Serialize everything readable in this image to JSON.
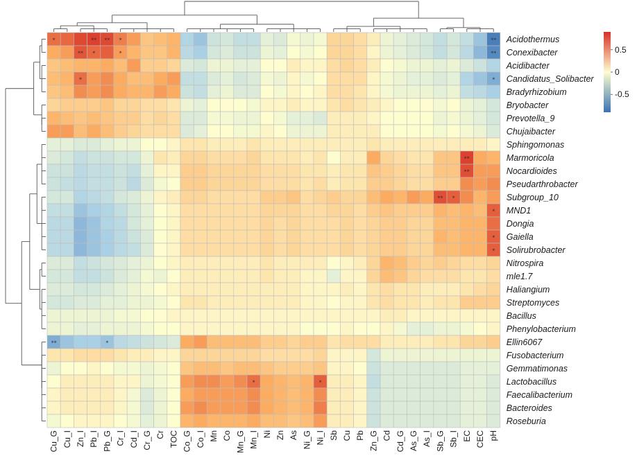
{
  "chart_data": {
    "type": "heatmap",
    "title": "",
    "columns": [
      "Cu_G",
      "Cu_I",
      "Zn_I",
      "Pb_I",
      "Pb_G",
      "Cr_I",
      "Cd_I",
      "Cr_G",
      "Cr",
      "TOC",
      "Co_G",
      "Co_I",
      "Mn",
      "Co",
      "Mn_G",
      "Mn_I",
      "Ni",
      "Zn",
      "As",
      "Ni_G",
      "Ni_I",
      "Sb",
      "Cu",
      "Pb",
      "Zn_G",
      "Cd",
      "Cd_G",
      "As_G",
      "As_I",
      "Sb_G",
      "Sb_I",
      "EC",
      "CEC",
      "pH"
    ],
    "rows": [
      "Acidothermus",
      "Conexibacter",
      "Acidibacter",
      "Candidatus_Solibacter",
      "Bradyrhizobium",
      "Bryobacter",
      "Prevotella_9",
      "Chujaibacter",
      "Sphingomonas",
      "Marmoricola",
      "Nocardioides",
      "Pseudarthrobacter",
      "Subgroup_10",
      "MND1",
      "Dongia",
      "Gaiella",
      "Solirubrobacter",
      "Nitrospira",
      "mle1.7",
      "Haliangium",
      "Streptomyces",
      "Bacillus",
      "Phenylobacterium",
      "Ellin6067",
      "Fusobacterium",
      "Gemmatimonas",
      "Lactobacillus",
      "Faecalibacterium",
      "Bacteroides",
      "Roseburia"
    ],
    "values": [
      [
        0.7,
        0.72,
        0.82,
        0.85,
        0.82,
        0.65,
        0.55,
        0.35,
        0.4,
        0.45,
        -0.45,
        -0.55,
        -0.3,
        -0.25,
        -0.35,
        -0.35,
        -0.15,
        -0.2,
        -0.05,
        -0.1,
        -0.05,
        0.25,
        0.25,
        0.2,
        0.1,
        -0.1,
        -0.15,
        -0.2,
        -0.25,
        -0.35,
        -0.25,
        -0.35,
        -0.55,
        -0.85
      ],
      [
        0.5,
        0.55,
        0.78,
        0.72,
        0.75,
        0.55,
        0.45,
        0.35,
        0.35,
        0.45,
        -0.4,
        -0.5,
        -0.25,
        -0.2,
        -0.3,
        -0.3,
        -0.1,
        -0.15,
        0.0,
        -0.05,
        0.0,
        0.25,
        0.25,
        0.2,
        0.05,
        -0.1,
        -0.15,
        -0.2,
        -0.25,
        -0.35,
        -0.25,
        -0.4,
        -0.6,
        -0.8
      ],
      [
        0.35,
        0.4,
        0.45,
        0.45,
        0.5,
        0.4,
        0.55,
        0.3,
        0.3,
        0.25,
        -0.2,
        -0.25,
        -0.1,
        -0.1,
        -0.15,
        -0.15,
        0.0,
        0.0,
        0.1,
        0.05,
        0.05,
        0.2,
        0.25,
        0.2,
        0.1,
        0.0,
        -0.05,
        -0.1,
        -0.1,
        -0.15,
        -0.1,
        -0.2,
        -0.3,
        -0.45
      ],
      [
        0.4,
        0.45,
        0.7,
        0.55,
        0.6,
        0.5,
        0.4,
        0.4,
        0.5,
        0.55,
        -0.35,
        -0.35,
        -0.2,
        -0.15,
        -0.25,
        -0.2,
        -0.05,
        -0.1,
        0.05,
        -0.05,
        0.0,
        0.2,
        0.2,
        0.2,
        0.05,
        -0.05,
        -0.1,
        -0.15,
        -0.15,
        -0.2,
        -0.15,
        -0.45,
        -0.55,
        -0.65
      ],
      [
        0.35,
        0.4,
        0.6,
        0.55,
        0.6,
        0.5,
        0.45,
        0.45,
        0.55,
        0.5,
        -0.3,
        -0.35,
        -0.15,
        -0.1,
        -0.2,
        -0.2,
        0.0,
        -0.05,
        0.05,
        0.0,
        0.05,
        0.2,
        0.2,
        0.15,
        0.05,
        -0.05,
        -0.1,
        -0.1,
        -0.1,
        -0.15,
        -0.1,
        -0.35,
        -0.4,
        -0.5
      ],
      [
        0.25,
        0.3,
        0.3,
        0.3,
        0.35,
        0.25,
        0.25,
        0.2,
        0.2,
        0.15,
        -0.1,
        -0.15,
        0.0,
        0.0,
        0.0,
        -0.05,
        0.05,
        0.05,
        0.1,
        0.05,
        0.05,
        0.15,
        0.2,
        0.15,
        0.1,
        0.05,
        0.0,
        0.0,
        0.0,
        -0.05,
        0.0,
        -0.1,
        -0.15,
        -0.25
      ],
      [
        0.45,
        0.4,
        0.35,
        0.4,
        0.35,
        0.3,
        0.3,
        0.2,
        0.25,
        0.2,
        -0.2,
        -0.2,
        -0.05,
        -0.05,
        -0.1,
        -0.1,
        0.0,
        -0.05,
        -0.15,
        -0.15,
        -0.2,
        0.1,
        0.1,
        0.1,
        0.05,
        0.0,
        0.0,
        0.0,
        0.0,
        -0.1,
        -0.05,
        -0.1,
        -0.15,
        -0.25
      ],
      [
        0.55,
        0.55,
        0.4,
        0.5,
        0.4,
        0.3,
        0.25,
        0.2,
        0.2,
        0.2,
        -0.2,
        -0.15,
        0.0,
        0.0,
        -0.05,
        -0.05,
        0.05,
        0.0,
        -0.1,
        -0.1,
        -0.1,
        0.1,
        0.1,
        0.1,
        0.1,
        0.0,
        0.0,
        0.0,
        0.0,
        -0.05,
        0.0,
        -0.05,
        -0.1,
        -0.2
      ],
      [
        -0.15,
        -0.15,
        -0.2,
        -0.2,
        -0.15,
        -0.1,
        -0.1,
        0.0,
        0.0,
        0.05,
        0.15,
        0.15,
        0.1,
        0.1,
        0.1,
        0.15,
        0.1,
        0.1,
        0.1,
        0.1,
        0.1,
        0.1,
        0.1,
        0.1,
        0.15,
        0.1,
        0.1,
        0.1,
        0.1,
        0.1,
        0.1,
        0.1,
        0.1,
        0.05
      ],
      [
        -0.2,
        -0.25,
        -0.35,
        -0.3,
        -0.3,
        -0.25,
        -0.25,
        -0.1,
        0.15,
        0.1,
        0.25,
        0.25,
        0.2,
        0.2,
        0.2,
        0.25,
        0.15,
        0.15,
        0.15,
        0.1,
        0.15,
        0.0,
        0.1,
        0.1,
        0.5,
        0.25,
        0.2,
        0.15,
        0.15,
        0.35,
        0.35,
        0.85,
        0.5,
        0.45
      ],
      [
        -0.3,
        -0.3,
        -0.4,
        -0.35,
        -0.35,
        -0.3,
        -0.35,
        -0.15,
        0.05,
        0.05,
        0.3,
        0.3,
        0.25,
        0.25,
        0.25,
        0.25,
        0.2,
        0.2,
        0.2,
        0.15,
        0.15,
        0.1,
        0.15,
        0.15,
        0.35,
        0.3,
        0.25,
        0.2,
        0.2,
        0.35,
        0.35,
        0.8,
        0.55,
        0.55
      ],
      [
        -0.3,
        -0.35,
        -0.4,
        -0.35,
        -0.35,
        -0.3,
        -0.4,
        -0.2,
        -0.05,
        0.0,
        0.3,
        0.3,
        0.25,
        0.25,
        0.25,
        0.25,
        0.2,
        0.2,
        0.2,
        0.15,
        0.2,
        0.1,
        0.15,
        0.15,
        0.3,
        0.3,
        0.25,
        0.2,
        0.2,
        0.3,
        0.3,
        0.6,
        0.55,
        0.6
      ],
      [
        -0.25,
        -0.25,
        -0.45,
        -0.4,
        -0.35,
        -0.25,
        -0.2,
        -0.1,
        0.05,
        0.1,
        0.25,
        0.25,
        0.2,
        0.2,
        0.2,
        0.2,
        0.3,
        0.3,
        0.35,
        0.2,
        0.25,
        0.3,
        0.25,
        0.25,
        0.4,
        0.5,
        0.45,
        0.55,
        0.5,
        0.8,
        0.75,
        0.6,
        0.45,
        0.55
      ],
      [
        -0.35,
        -0.35,
        -0.55,
        -0.5,
        -0.45,
        -0.35,
        -0.25,
        -0.15,
        0.0,
        0.05,
        0.2,
        0.2,
        0.2,
        0.2,
        0.2,
        0.2,
        0.25,
        0.25,
        0.25,
        0.2,
        0.2,
        0.25,
        0.25,
        0.2,
        0.3,
        0.35,
        0.3,
        0.3,
        0.3,
        0.45,
        0.4,
        0.45,
        0.4,
        0.75
      ],
      [
        -0.4,
        -0.4,
        -0.6,
        -0.55,
        -0.45,
        -0.4,
        -0.25,
        -0.15,
        0.0,
        0.05,
        0.2,
        0.2,
        0.2,
        0.2,
        0.2,
        0.2,
        0.25,
        0.2,
        0.25,
        0.2,
        0.2,
        0.2,
        0.25,
        0.2,
        0.25,
        0.3,
        0.3,
        0.25,
        0.25,
        0.4,
        0.4,
        0.45,
        0.45,
        0.7
      ],
      [
        -0.4,
        -0.4,
        -0.6,
        -0.55,
        -0.5,
        -0.4,
        -0.3,
        -0.2,
        0.0,
        0.05,
        0.2,
        0.2,
        0.2,
        0.2,
        0.2,
        0.2,
        0.25,
        0.2,
        0.25,
        0.2,
        0.2,
        0.2,
        0.25,
        0.2,
        0.25,
        0.3,
        0.3,
        0.25,
        0.25,
        0.45,
        0.4,
        0.45,
        0.45,
        0.75
      ],
      [
        -0.4,
        -0.4,
        -0.6,
        -0.55,
        -0.5,
        -0.4,
        -0.35,
        -0.2,
        0.0,
        0.05,
        0.2,
        0.2,
        0.2,
        0.2,
        0.2,
        0.2,
        0.25,
        0.2,
        0.25,
        0.2,
        0.2,
        0.2,
        0.25,
        0.2,
        0.25,
        0.3,
        0.3,
        0.25,
        0.25,
        0.4,
        0.4,
        0.45,
        0.45,
        0.75
      ],
      [
        -0.2,
        -0.2,
        -0.35,
        -0.3,
        -0.25,
        -0.2,
        -0.15,
        -0.1,
        0.0,
        0.05,
        0.1,
        0.1,
        0.1,
        0.1,
        0.1,
        0.1,
        0.15,
        0.1,
        0.1,
        0.1,
        0.1,
        0.0,
        0.05,
        0.1,
        0.25,
        0.45,
        0.4,
        0.3,
        0.25,
        0.3,
        0.25,
        0.2,
        0.2,
        0.25
      ],
      [
        -0.25,
        -0.25,
        -0.35,
        -0.35,
        -0.3,
        -0.2,
        -0.15,
        -0.05,
        -0.1,
        0.0,
        0.1,
        0.1,
        0.1,
        0.1,
        0.1,
        0.1,
        0.15,
        0.1,
        0.1,
        0.05,
        0.05,
        -0.15,
        0.05,
        0.05,
        0.25,
        0.4,
        0.35,
        0.25,
        0.2,
        0.2,
        0.2,
        0.15,
        0.15,
        0.2
      ],
      [
        -0.2,
        -0.2,
        -0.25,
        -0.25,
        -0.2,
        -0.15,
        -0.1,
        -0.05,
        0.0,
        0.05,
        0.1,
        0.1,
        0.1,
        0.1,
        0.1,
        0.1,
        0.1,
        0.1,
        0.1,
        0.05,
        0.05,
        0.05,
        0.1,
        0.05,
        0.15,
        0.2,
        0.15,
        0.15,
        0.1,
        0.1,
        0.1,
        0.15,
        0.2,
        0.25
      ],
      [
        -0.25,
        -0.25,
        -0.2,
        -0.2,
        -0.15,
        -0.15,
        -0.1,
        -0.1,
        -0.05,
        0.0,
        0.15,
        0.15,
        0.1,
        0.1,
        0.1,
        0.1,
        0.1,
        0.1,
        0.1,
        0.05,
        0.05,
        0.0,
        0.05,
        0.05,
        0.15,
        0.2,
        0.15,
        0.15,
        0.1,
        0.15,
        0.15,
        0.3,
        0.3,
        0.3
      ],
      [
        -0.1,
        -0.1,
        -0.1,
        -0.1,
        -0.1,
        -0.05,
        -0.05,
        0.0,
        0.0,
        0.05,
        0.05,
        0.05,
        0.05,
        0.05,
        0.05,
        0.05,
        0.05,
        0.05,
        0.05,
        0.05,
        0.05,
        0.05,
        0.05,
        0.05,
        0.05,
        0.1,
        0.1,
        0.05,
        0.05,
        0.05,
        0.05,
        0.05,
        0.05,
        0.05
      ],
      [
        -0.1,
        -0.1,
        -0.15,
        -0.15,
        -0.1,
        -0.1,
        -0.1,
        -0.05,
        0.0,
        0.0,
        0.05,
        0.05,
        0.05,
        0.05,
        0.05,
        0.05,
        0.05,
        0.05,
        0.05,
        0.0,
        0.0,
        0.0,
        0.05,
        0.0,
        0.0,
        0.05,
        -0.05,
        -0.15,
        -0.15,
        -0.1,
        -0.1,
        -0.05,
        0.0,
        0.05
      ],
      [
        -0.65,
        -0.55,
        -0.5,
        -0.5,
        -0.55,
        -0.4,
        -0.35,
        -0.3,
        -0.25,
        -0.2,
        0.5,
        0.55,
        0.4,
        0.4,
        0.4,
        0.4,
        0.3,
        0.3,
        0.25,
        0.3,
        0.3,
        0.15,
        0.2,
        0.2,
        0.2,
        0.1,
        0.1,
        0.1,
        0.1,
        0.15,
        0.15,
        0.25,
        0.25,
        0.3
      ],
      [
        0.15,
        0.15,
        0.2,
        0.2,
        0.2,
        0.15,
        0.1,
        0.1,
        0.05,
        0.05,
        0.25,
        0.25,
        0.25,
        0.25,
        0.25,
        0.25,
        0.2,
        0.2,
        0.2,
        0.2,
        0.25,
        0.05,
        0.05,
        0.05,
        -0.25,
        -0.1,
        -0.1,
        -0.1,
        -0.1,
        -0.1,
        -0.1,
        -0.1,
        -0.1,
        -0.1
      ],
      [
        -0.1,
        0.0,
        0.0,
        0.05,
        0.0,
        -0.05,
        -0.05,
        -0.1,
        -0.05,
        0.0,
        0.35,
        0.4,
        0.4,
        0.35,
        0.4,
        0.4,
        0.35,
        0.3,
        0.3,
        0.3,
        0.35,
        0.05,
        0.05,
        0.0,
        -0.3,
        -0.2,
        -0.2,
        -0.2,
        -0.2,
        -0.2,
        -0.2,
        -0.15,
        -0.15,
        -0.15
      ],
      [
        0.0,
        0.1,
        0.1,
        0.1,
        0.1,
        0.05,
        0.05,
        -0.1,
        -0.05,
        0.0,
        0.55,
        0.6,
        0.6,
        0.55,
        0.6,
        0.7,
        0.5,
        0.45,
        0.4,
        0.45,
        0.75,
        0.1,
        0.1,
        0.05,
        -0.35,
        -0.2,
        -0.2,
        -0.2,
        -0.2,
        -0.2,
        -0.2,
        -0.15,
        -0.15,
        -0.2
      ],
      [
        0.05,
        0.1,
        0.1,
        0.1,
        0.1,
        0.05,
        -0.05,
        -0.2,
        -0.1,
        0.0,
        0.5,
        0.55,
        0.55,
        0.55,
        0.55,
        0.6,
        0.5,
        0.45,
        0.4,
        0.45,
        0.6,
        0.1,
        0.1,
        0.05,
        -0.3,
        -0.2,
        -0.2,
        -0.2,
        -0.2,
        -0.2,
        -0.2,
        -0.15,
        -0.15,
        -0.2
      ],
      [
        0.05,
        0.1,
        0.1,
        0.1,
        0.1,
        0.05,
        -0.05,
        -0.2,
        -0.1,
        0.0,
        0.55,
        0.6,
        0.55,
        0.55,
        0.55,
        0.6,
        0.5,
        0.45,
        0.4,
        0.45,
        0.65,
        0.1,
        0.1,
        0.05,
        -0.3,
        -0.2,
        -0.2,
        -0.2,
        -0.2,
        -0.2,
        -0.2,
        -0.15,
        -0.15,
        -0.2
      ],
      [
        -0.05,
        0.0,
        0.05,
        0.05,
        0.05,
        0.0,
        -0.05,
        -0.15,
        -0.1,
        0.0,
        0.45,
        0.5,
        0.45,
        0.45,
        0.45,
        0.5,
        0.4,
        0.4,
        0.35,
        0.4,
        0.55,
        0.1,
        0.1,
        0.05,
        -0.3,
        -0.2,
        -0.2,
        -0.2,
        -0.2,
        -0.2,
        -0.2,
        -0.15,
        -0.15,
        -0.2
      ]
    ],
    "significance": [
      {
        "row": "Acidothermus",
        "col": "Cu_G",
        "mark": "*"
      },
      {
        "row": "Acidothermus",
        "col": "Pb_I",
        "mark": "**"
      },
      {
        "row": "Acidothermus",
        "col": "Pb_G",
        "mark": "**"
      },
      {
        "row": "Acidothermus",
        "col": "Cr_I",
        "mark": "*"
      },
      {
        "row": "Acidothermus",
        "col": "pH",
        "mark": "**"
      },
      {
        "row": "Conexibacter",
        "col": "Zn_I",
        "mark": "**"
      },
      {
        "row": "Conexibacter",
        "col": "Pb_I",
        "mark": "*"
      },
      {
        "row": "Conexibacter",
        "col": "Cr_I",
        "mark": "*"
      },
      {
        "row": "Conexibacter",
        "col": "pH",
        "mark": "**"
      },
      {
        "row": "Candidatus_Solibacter",
        "col": "Zn_I",
        "mark": "*"
      },
      {
        "row": "Candidatus_Solibacter",
        "col": "pH",
        "mark": "*"
      },
      {
        "row": "Marmoricola",
        "col": "EC",
        "mark": "**"
      },
      {
        "row": "Nocardioides",
        "col": "EC",
        "mark": "**"
      },
      {
        "row": "Subgroup_10",
        "col": "Sb_G",
        "mark": "**"
      },
      {
        "row": "Subgroup_10",
        "col": "Sb_I",
        "mark": "*"
      },
      {
        "row": "MND1",
        "col": "pH",
        "mark": "*"
      },
      {
        "row": "Gaiella",
        "col": "pH",
        "mark": "*"
      },
      {
        "row": "Solirubrobacter",
        "col": "pH",
        "mark": "*"
      },
      {
        "row": "Ellin6067",
        "col": "Cu_G",
        "mark": "**"
      },
      {
        "row": "Ellin6067",
        "col": "Pb_G",
        "mark": "*"
      },
      {
        "row": "Lactobacillus",
        "col": "Mn_I",
        "mark": "*"
      },
      {
        "row": "Lactobacillus",
        "col": "Ni_I",
        "mark": "*"
      }
    ],
    "legend": {
      "position": "right",
      "range": [
        -0.9,
        0.9
      ],
      "tick_labels": [
        "0.5",
        "0",
        "-0.5"
      ],
      "tick_values": [
        0.5,
        0,
        -0.5
      ],
      "colors": {
        "low": "#3a72b4",
        "mid": "#fdfdd0",
        "high": "#d73027"
      }
    },
    "row_dendrogram": "left",
    "col_dendrogram": "top"
  }
}
